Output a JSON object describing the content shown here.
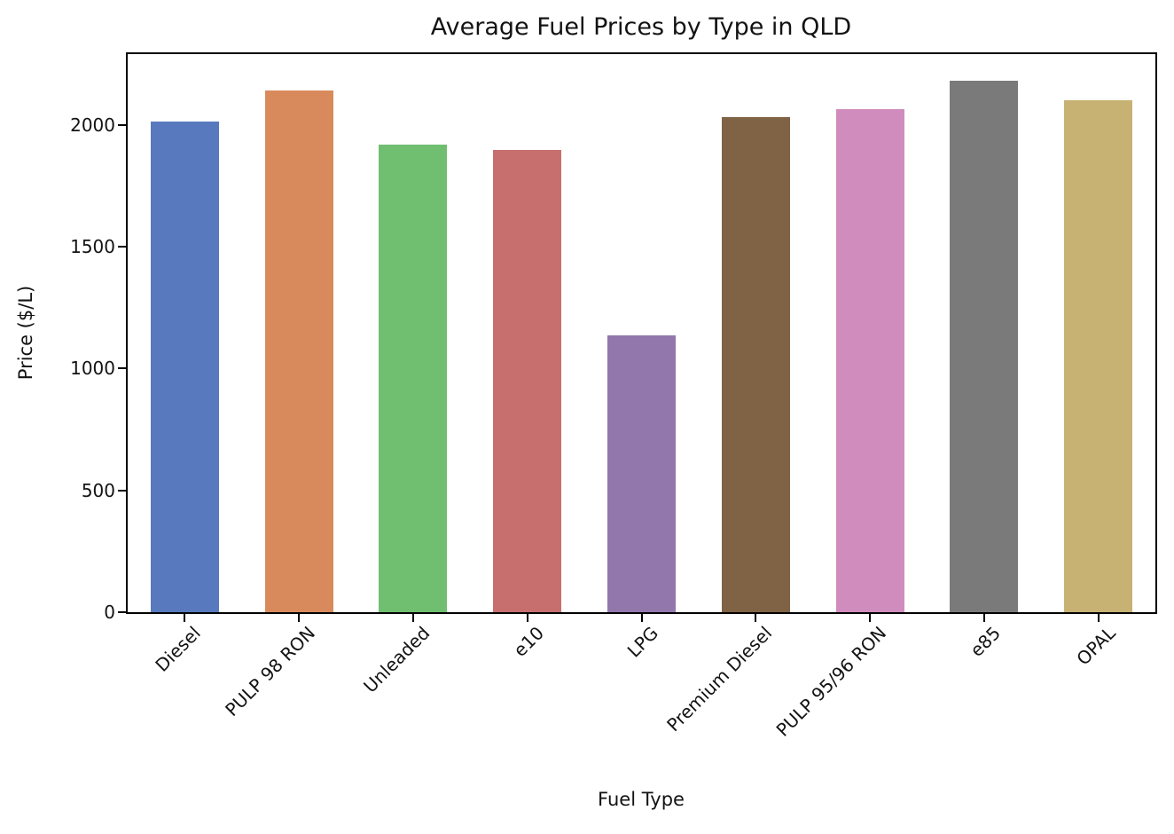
{
  "figure": {
    "title": "Average Fuel Prices by Type in QLD",
    "xlabel": "Fuel Type",
    "ylabel": "Price ($/L)"
  },
  "chart_data": {
    "type": "bar",
    "title": "Average Fuel Prices by Type in QLD",
    "xlabel": "Fuel Type",
    "ylabel": "Price ($/L)",
    "categories": [
      "Diesel",
      "PULP 98 RON",
      "Unleaded",
      "e10",
      "LPG",
      "Premium Diesel",
      "PULP 95/96 RON",
      "e85",
      "OPAL"
    ],
    "values": [
      2015,
      2140,
      1920,
      1895,
      1135,
      2030,
      2065,
      2180,
      2100
    ],
    "bar_colors": [
      "#5879BD",
      "#D98A5C",
      "#70BE70",
      "#C66F6E",
      "#9277AD",
      "#806245",
      "#D18CBE",
      "#7A7A7A",
      "#C7B173"
    ],
    "ylim": [
      0,
      2290
    ],
    "yticks": [
      0,
      500,
      1000,
      1500,
      2000
    ],
    "x_tick_rotation_deg": 45,
    "grid": false,
    "legend": "none",
    "background_color": "#ffffff",
    "spine_color": "#000000"
  }
}
